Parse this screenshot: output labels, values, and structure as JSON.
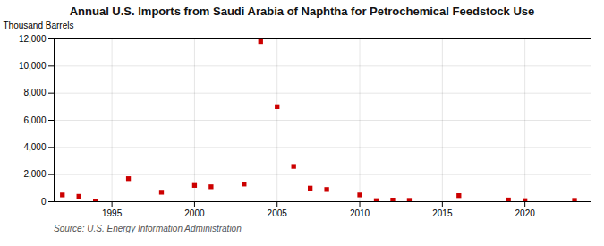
{
  "chart_data": {
    "type": "scatter",
    "title": "Annual U.S. Imports from Saudi Arabia of Naphtha for Petrochemical Feedstock Use",
    "ylabel": "Thousand Barrels",
    "annotations": [
      "Source: U.S. Energy Information Administration"
    ],
    "x": [
      1992,
      1993,
      1994,
      1996,
      1998,
      2000,
      2001,
      2003,
      2004,
      2005,
      2006,
      2007,
      2008,
      2010,
      2011,
      2012,
      2013,
      2016,
      2019,
      2020,
      2023
    ],
    "values": [
      500,
      400,
      30,
      1700,
      700,
      1200,
      1100,
      1300,
      11800,
      7000,
      2600,
      1000,
      900,
      500,
      80,
      120,
      100,
      450,
      130,
      80,
      100
    ],
    "color": "#cc0000",
    "marker": "square",
    "xlim": [
      1991.5,
      2024
    ],
    "xticks": [
      1995,
      2000,
      2005,
      2010,
      2015,
      2020
    ],
    "ylim": [
      0,
      12000
    ],
    "yticks": [
      0,
      {
        "value": 2000,
        "label": "2,000"
      },
      {
        "value": 4000,
        "label": "4,000"
      },
      {
        "value": 6000,
        "label": "6,000"
      },
      {
        "value": 8000,
        "label": "8,000"
      },
      {
        "value": 10000,
        "label": "10,000"
      },
      {
        "value": 12000,
        "label": "12,000"
      }
    ],
    "grid": true
  }
}
